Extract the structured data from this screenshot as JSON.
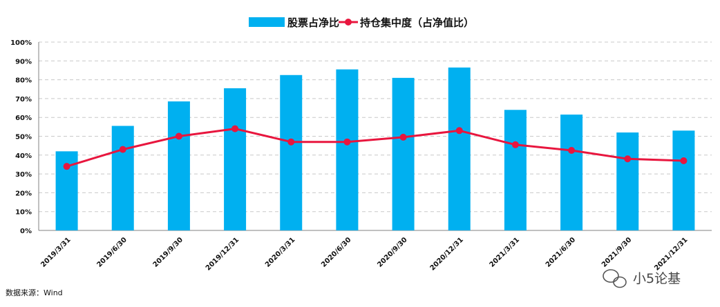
{
  "chart_data": {
    "type": "bar",
    "categories": [
      "2019/3/31",
      "2019/6/30",
      "2019/9/30",
      "2019/12/31",
      "2020/3/31",
      "2020/6/30",
      "2020/9/30",
      "2020/12/31",
      "2021/3/31",
      "2021/6/30",
      "2021/9/30",
      "2021/12/31"
    ],
    "series": [
      {
        "name": "股票占净比",
        "type": "bar",
        "color": "#00B0F0",
        "values": [
          42,
          55.5,
          68.5,
          75.5,
          82.5,
          85.5,
          81,
          86.5,
          64,
          61.5,
          52,
          53
        ]
      },
      {
        "name": "持仓集中度（占净值比）",
        "type": "line",
        "color": "#E8163E",
        "values": [
          34,
          43,
          50,
          54,
          47,
          47,
          49.5,
          53,
          45.5,
          42.5,
          38,
          37
        ]
      }
    ],
    "ylim": [
      0,
      100
    ],
    "yticks": [
      "0%",
      "10%",
      "20%",
      "30%",
      "40%",
      "50%",
      "60%",
      "70%",
      "80%",
      "90%",
      "100%"
    ],
    "grid": true,
    "legend_position": "top-center"
  },
  "source_note": "数据来源：Wind",
  "watermark": "小5论基"
}
